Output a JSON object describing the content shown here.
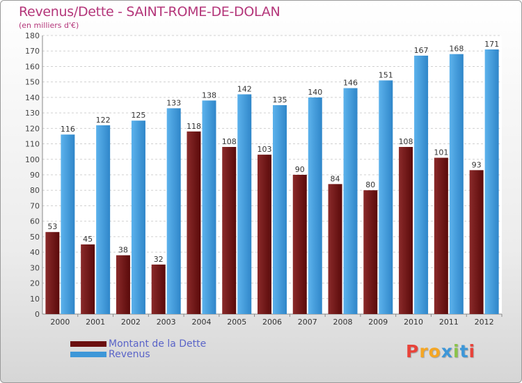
{
  "chart_data": {
    "type": "bar",
    "title": "Revenus/Dette - SAINT-ROME-DE-DOLAN",
    "subtitle": "(en milliers d'€)",
    "categories": [
      "2000",
      "2001",
      "2002",
      "2003",
      "2004",
      "2005",
      "2006",
      "2007",
      "2008",
      "2009",
      "2010",
      "2011",
      "2012"
    ],
    "series": [
      {
        "name": "Montant de la Dette",
        "color": "#7a1c1c",
        "values": [
          53,
          45,
          38,
          32,
          118,
          108,
          103,
          90,
          84,
          80,
          108,
          101,
          93
        ]
      },
      {
        "name": "Revenus",
        "color": "#4aa3e3",
        "values": [
          116,
          122,
          125,
          133,
          138,
          142,
          135,
          140,
          146,
          151,
          167,
          168,
          171
        ]
      }
    ],
    "ylim": [
      0,
      180
    ],
    "yticks": [
      0,
      10,
      20,
      30,
      40,
      50,
      60,
      70,
      80,
      90,
      100,
      110,
      120,
      130,
      140,
      150,
      160,
      170,
      180
    ],
    "grid": true,
    "legend_position": "bottom-left"
  },
  "legend": {
    "items": [
      {
        "label": "Montant de la Dette",
        "color": "#6b0f0f"
      },
      {
        "label": "Revenus",
        "color": "#3d97d8"
      }
    ]
  },
  "logo": {
    "text": "Proxiti",
    "letter_colors": [
      "#e8433a",
      "#f5a623",
      "#f5a623",
      "#3d97d8",
      "#8bc34a",
      "#3d97d8",
      "#e8433a"
    ]
  }
}
